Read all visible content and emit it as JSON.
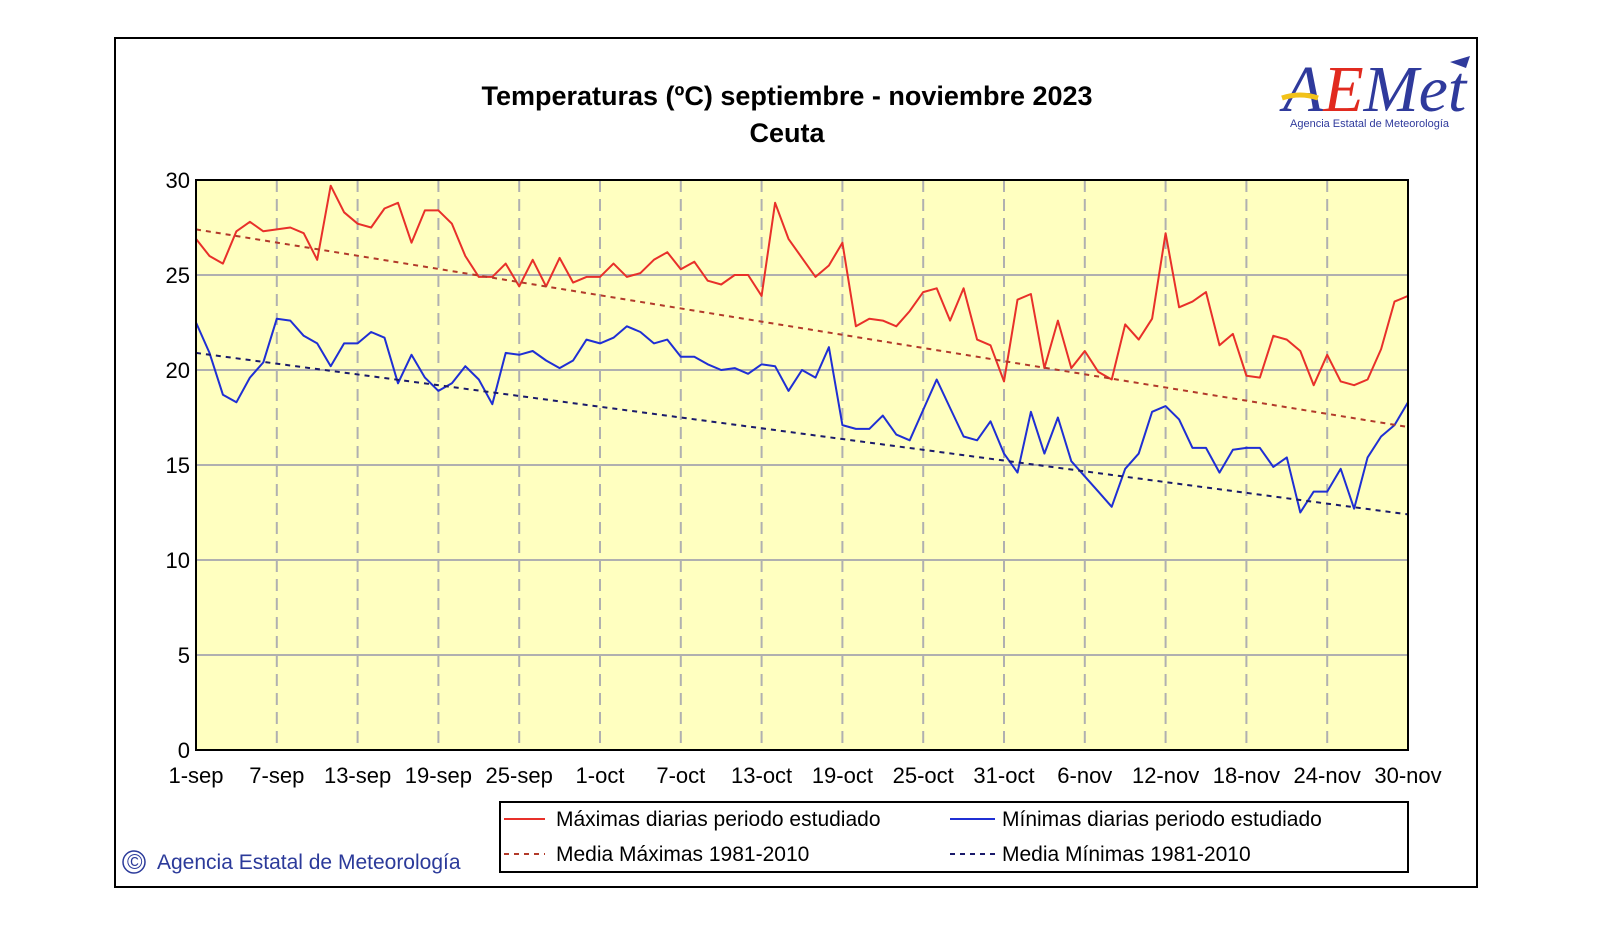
{
  "logo": {
    "brand_name": "AEMet",
    "brand_letters": [
      "A",
      "E",
      "Met"
    ],
    "subtitle": "Agencia Estatal de Meteorología"
  },
  "copyright": {
    "symbol": "©",
    "text": "Agencia Estatal de Meteorología"
  },
  "colors": {
    "plot_background": "#ffffc0",
    "grid": "#b0b0b0",
    "max_series": "#e8302a",
    "min_series": "#1f2fd4",
    "max_mean": "#b23a2a",
    "min_mean": "#1a1a6a",
    "logo_blue": "#2f3a9c",
    "logo_red": "#e12a1f",
    "logo_yellow": "#f2c21a"
  },
  "chart_data": {
    "type": "line",
    "title": "Temperaturas (ºC) septiembre - noviembre 2023",
    "subtitle": "Ceuta",
    "xlabel": "",
    "ylabel": "",
    "ylim": [
      0,
      30
    ],
    "yticks": [
      0,
      5,
      10,
      15,
      20,
      25,
      30
    ],
    "x_count": 91,
    "x_tick_indices": [
      0,
      6,
      12,
      18,
      24,
      30,
      36,
      42,
      48,
      54,
      60,
      66,
      72,
      78,
      84,
      90
    ],
    "x_tick_labels": [
      "1-sep",
      "7-sep",
      "13-sep",
      "19-sep",
      "25-sep",
      "1-oct",
      "7-oct",
      "13-oct",
      "19-oct",
      "25-oct",
      "31-oct",
      "6-nov",
      "12-nov",
      "18-nov",
      "24-nov",
      "30-nov"
    ],
    "grid": true,
    "legend_position": "bottom-right",
    "series": [
      {
        "name": "Máximas diarias periodo estudiado",
        "style": "solid",
        "color": "#e8302a",
        "values": [
          26.9,
          26.0,
          25.6,
          27.3,
          27.8,
          27.3,
          27.4,
          27.5,
          27.2,
          25.8,
          29.7,
          28.3,
          27.7,
          27.5,
          28.5,
          28.8,
          26.7,
          28.4,
          28.4,
          27.7,
          26.0,
          24.9,
          24.9,
          25.6,
          24.4,
          25.8,
          24.4,
          25.9,
          24.6,
          24.9,
          24.9,
          25.6,
          24.9,
          25.1,
          25.8,
          26.2,
          25.3,
          25.7,
          24.7,
          24.5,
          25.0,
          25.0,
          23.9,
          28.8,
          26.9,
          25.9,
          24.9,
          25.5,
          26.7,
          22.3,
          22.7,
          22.6,
          22.3,
          23.1,
          24.1,
          24.3,
          22.6,
          24.3,
          21.6,
          21.3,
          19.4,
          23.7,
          24.0,
          20.1,
          22.6,
          20.1,
          21.0,
          19.9,
          19.5,
          22.4,
          21.6,
          22.7,
          27.2,
          23.3,
          23.6,
          24.1,
          21.3,
          21.9,
          19.7,
          19.6,
          21.8,
          21.6,
          21.0,
          19.2,
          20.8,
          19.4,
          19.2,
          19.5,
          21.1,
          23.6,
          23.9
        ]
      },
      {
        "name": "Mínimas diarias periodo estudiado",
        "style": "solid",
        "color": "#1f2fd4",
        "values": [
          22.5,
          20.9,
          18.7,
          18.3,
          19.6,
          20.4,
          22.7,
          22.6,
          21.8,
          21.4,
          20.2,
          21.4,
          21.4,
          22.0,
          21.7,
          19.3,
          20.8,
          19.6,
          18.9,
          19.3,
          20.2,
          19.5,
          18.2,
          20.9,
          20.8,
          21.0,
          20.5,
          20.1,
          20.5,
          21.6,
          21.4,
          21.7,
          22.3,
          22.0,
          21.4,
          21.6,
          20.7,
          20.7,
          20.3,
          20.0,
          20.1,
          19.8,
          20.3,
          20.2,
          18.9,
          20.0,
          19.6,
          21.2,
          17.1,
          16.9,
          16.9,
          17.6,
          16.6,
          16.3,
          17.9,
          19.5,
          18.0,
          16.5,
          16.3,
          17.3,
          15.6,
          14.6,
          17.8,
          15.6,
          17.5,
          15.2,
          14.4,
          13.6,
          12.8,
          14.8,
          15.6,
          17.8,
          18.1,
          17.4,
          15.9,
          15.9,
          14.6,
          15.8,
          15.9,
          15.9,
          14.9,
          15.4,
          12.5,
          13.6,
          13.6,
          14.8,
          12.7,
          15.4,
          16.5,
          17.1,
          18.3
        ]
      },
      {
        "name": "Media Máximas 1981-2010",
        "style": "dashed",
        "color": "#b23a2a",
        "start": 27.4,
        "end": 17.0
      },
      {
        "name": "Media Mínimas 1981-2010",
        "style": "dashed",
        "color": "#1a1a6a",
        "start": 20.9,
        "end": 12.4
      }
    ]
  }
}
